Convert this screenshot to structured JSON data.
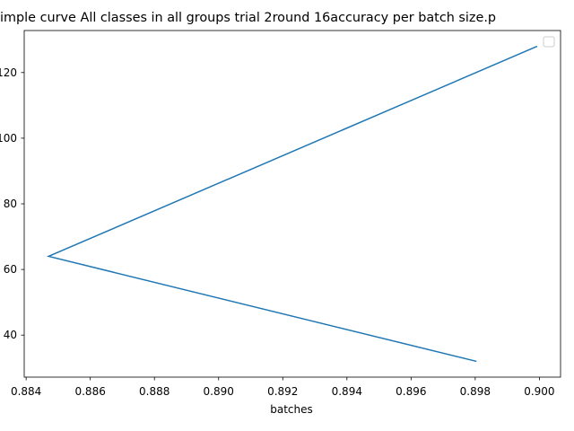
{
  "chart_data": {
    "type": "line",
    "title": "imple curve All classes in all groups trial 2round 16accuracy per batch size.p",
    "xlabel": "batches",
    "x": [
      0.89993,
      0.8847,
      0.89804
    ],
    "series": [
      {
        "color": "#1f77b4",
        "values": [
          128,
          64,
          32
        ]
      }
    ],
    "xlim": [
      0.88394,
      0.90066
    ],
    "ylim": [
      27.2,
      132.8
    ],
    "xticks": [
      {
        "value": 0.884,
        "label": "0.884"
      },
      {
        "value": 0.886,
        "label": "0.886"
      },
      {
        "value": 0.888,
        "label": "0.888"
      },
      {
        "value": 0.89,
        "label": "0.890"
      },
      {
        "value": 0.892,
        "label": "0.892"
      },
      {
        "value": 0.894,
        "label": "0.894"
      },
      {
        "value": 0.896,
        "label": "0.896"
      },
      {
        "value": 0.898,
        "label": "0.898"
      },
      {
        "value": 0.9,
        "label": "0.900"
      }
    ],
    "yticks": [
      40,
      60,
      80,
      100,
      120
    ]
  }
}
